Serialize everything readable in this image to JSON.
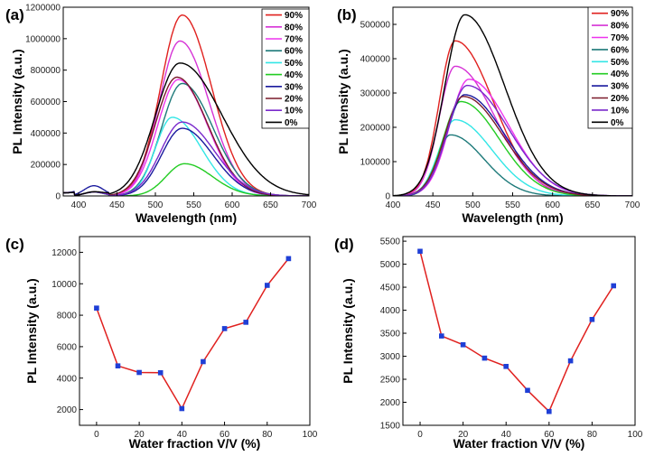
{
  "chart_data": [
    {
      "type": "line",
      "panel_label": "(a)",
      "xlabel": "Wavelength (nm)",
      "ylabel": "PL Intensity (a.u.)",
      "xlim": [
        380,
        700
      ],
      "ylim": [
        0,
        1200000
      ],
      "xticks": [
        400,
        450,
        500,
        550,
        600,
        650,
        700
      ],
      "yticks": [
        0,
        200000,
        400000,
        600000,
        800000,
        1000000,
        1200000
      ],
      "legend_position": "top-right",
      "series": [
        {
          "name": "90%",
          "color": "#e0211f",
          "peak": 535,
          "amplitude": 1150000,
          "sigma_left": 28,
          "sigma_right": 38
        },
        {
          "name": "80%",
          "color": "#d633d6",
          "peak": 532,
          "amplitude": 985000,
          "sigma_left": 27,
          "sigma_right": 38
        },
        {
          "name": "70%",
          "color": "#ee33ee",
          "peak": 530,
          "amplitude": 740000,
          "sigma_left": 27,
          "sigma_right": 38
        },
        {
          "name": "60%",
          "color": "#1e7a7a",
          "peak": 535,
          "amplitude": 715000,
          "sigma_left": 27,
          "sigma_right": 40
        },
        {
          "name": "50%",
          "color": "#33e6e6",
          "peak": 522,
          "amplitude": 500000,
          "sigma_left": 22,
          "sigma_right": 38
        },
        {
          "name": "40%",
          "color": "#22cc22",
          "peak": 538,
          "amplitude": 205000,
          "sigma_left": 24,
          "sigma_right": 36
        },
        {
          "name": "30%",
          "color": "#1a1a9e",
          "peak": 535,
          "amplitude": 430000,
          "sigma_left": 27,
          "sigma_right": 40
        },
        {
          "name": "20%",
          "color": "#7a1a2a",
          "peak": 528,
          "amplitude": 755000,
          "sigma_left": 28,
          "sigma_right": 40
        },
        {
          "name": "10%",
          "color": "#7a2acc",
          "peak": 535,
          "amplitude": 470000,
          "sigma_left": 28,
          "sigma_right": 42
        },
        {
          "name": "0%",
          "color": "#000000",
          "peak": 532,
          "amplitude": 845000,
          "sigma_left": 32,
          "sigma_right": 55
        }
      ]
    },
    {
      "type": "line",
      "panel_label": "(b)",
      "xlabel": "Wavelength (nm)",
      "ylabel": "PL Intensity (a.u.)",
      "xlim": [
        400,
        700
      ],
      "ylim": [
        0,
        550000
      ],
      "xticks": [
        400,
        450,
        500,
        550,
        600,
        650,
        700
      ],
      "yticks": [
        0,
        100000,
        200000,
        300000,
        400000,
        500000
      ],
      "legend_position": "top-right",
      "series": [
        {
          "name": "90%",
          "color": "#e0211f",
          "peak": 478,
          "amplitude": 452000,
          "sigma_left": 20,
          "sigma_right": 48
        },
        {
          "name": "80%",
          "color": "#d633d6",
          "peak": 478,
          "amplitude": 378000,
          "sigma_left": 20,
          "sigma_right": 50
        },
        {
          "name": "70%",
          "color": "#ee33ee",
          "peak": 495,
          "amplitude": 340000,
          "sigma_left": 24,
          "sigma_right": 50
        },
        {
          "name": "60%",
          "color": "#1e7a7a",
          "peak": 472,
          "amplitude": 178000,
          "sigma_left": 17,
          "sigma_right": 42
        },
        {
          "name": "50%",
          "color": "#33e6e6",
          "peak": 478,
          "amplitude": 222000,
          "sigma_left": 20,
          "sigma_right": 46
        },
        {
          "name": "40%",
          "color": "#22cc22",
          "peak": 485,
          "amplitude": 275000,
          "sigma_left": 22,
          "sigma_right": 48
        },
        {
          "name": "30%",
          "color": "#1a1a9e",
          "peak": 490,
          "amplitude": 295000,
          "sigma_left": 23,
          "sigma_right": 50
        },
        {
          "name": "20%",
          "color": "#7a1a2a",
          "peak": 488,
          "amplitude": 290000,
          "sigma_left": 23,
          "sigma_right": 50
        },
        {
          "name": "10%",
          "color": "#7a2acc",
          "peak": 493,
          "amplitude": 322000,
          "sigma_left": 24,
          "sigma_right": 52
        },
        {
          "name": "0%",
          "color": "#000000",
          "peak": 490,
          "amplitude": 528000,
          "sigma_left": 25,
          "sigma_right": 50
        }
      ]
    },
    {
      "type": "line",
      "panel_label": "(c)",
      "xlabel": "Water fraction V/V (%)",
      "ylabel": "PL Intensity (a.u.)",
      "xlim": [
        -8,
        100
      ],
      "ylim": [
        1000,
        13000
      ],
      "xticks": [
        0,
        20,
        40,
        60,
        80,
        100
      ],
      "yticks": [
        2000,
        4000,
        6000,
        8000,
        10000,
        12000
      ],
      "series": [
        {
          "name": "PL intensity",
          "color": "#e0211f",
          "marker_color": "#1f3fd6",
          "x": [
            0,
            10,
            20,
            30,
            40,
            50,
            60,
            70,
            80,
            90
          ],
          "y": [
            8450,
            4780,
            4360,
            4340,
            2060,
            5050,
            7150,
            7550,
            9900,
            11600
          ]
        }
      ]
    },
    {
      "type": "line",
      "panel_label": "(d)",
      "xlabel": "Water fraction V/V (%)",
      "ylabel": "PL Intensity (a.u.)",
      "xlim": [
        -8,
        100
      ],
      "ylim": [
        1500,
        5600
      ],
      "xticks": [
        0,
        20,
        40,
        60,
        80,
        100
      ],
      "yticks": [
        1500,
        2000,
        2500,
        3000,
        3500,
        4000,
        4500,
        5000,
        5500
      ],
      "series": [
        {
          "name": "PL intensity",
          "color": "#e0211f",
          "marker_color": "#1f3fd6",
          "x": [
            0,
            10,
            20,
            30,
            40,
            50,
            60,
            70,
            80,
            90
          ],
          "y": [
            5280,
            3440,
            3250,
            2960,
            2780,
            2260,
            1800,
            2900,
            3800,
            4530
          ]
        }
      ]
    }
  ]
}
